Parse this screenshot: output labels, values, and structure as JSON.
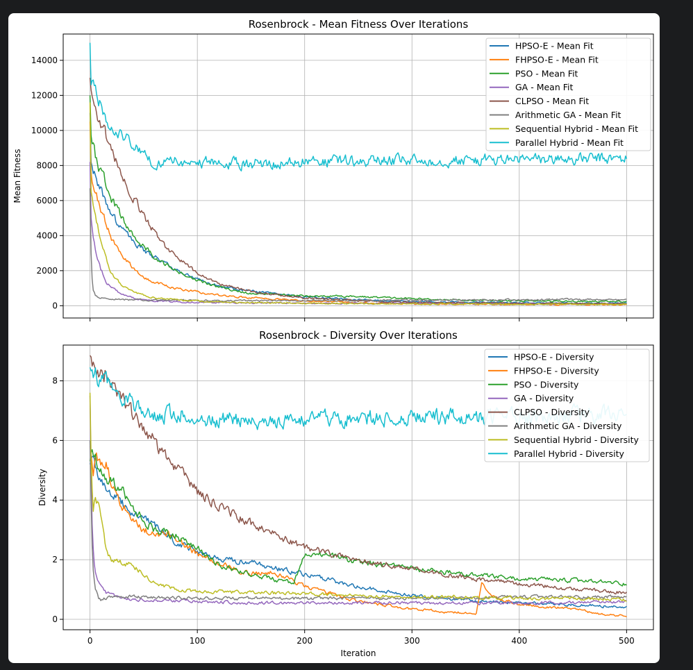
{
  "chart_data": [
    {
      "type": "line",
      "title": "Rosenbrock - Mean Fitness Over Iterations",
      "xlabel": "",
      "ylabel": "Mean Fitness",
      "xlim": [
        -25,
        525
      ],
      "ylim": [
        -700,
        15500
      ],
      "xticks": [
        0,
        100,
        200,
        300,
        400,
        500
      ],
      "yticks": [
        0,
        2000,
        4000,
        6000,
        8000,
        10000,
        12000,
        14000
      ],
      "grid": true,
      "legend_position": "top-right",
      "series": [
        {
          "name": "HPSO-E - Mean Fit",
          "color": "#1f77b4",
          "x": [
            0,
            1,
            3,
            5,
            10,
            15,
            20,
            30,
            40,
            50,
            60,
            70,
            80,
            100,
            120,
            150,
            200,
            250,
            300,
            350,
            400,
            450,
            500
          ],
          "y": [
            11000,
            8200,
            7800,
            7300,
            6600,
            5900,
            5200,
            4300,
            3700,
            3100,
            2800,
            2400,
            2050,
            1500,
            1100,
            850,
            500,
            350,
            250,
            200,
            170,
            150,
            140
          ]
        },
        {
          "name": "FHPSO-E - Mean Fit",
          "color": "#ff7f0e",
          "x": [
            0,
            1,
            3,
            5,
            10,
            15,
            20,
            30,
            40,
            50,
            60,
            70,
            80,
            100,
            120,
            150,
            200,
            250,
            300,
            350,
            400,
            450,
            500
          ],
          "y": [
            10500,
            7600,
            7000,
            6500,
            5500,
            4700,
            3900,
            2900,
            2200,
            1650,
            1350,
            1150,
            1000,
            780,
            600,
            450,
            280,
            160,
            110,
            90,
            80,
            70,
            60
          ]
        },
        {
          "name": "PSO - Mean Fit",
          "color": "#2ca02c",
          "x": [
            0,
            1,
            3,
            5,
            10,
            15,
            20,
            30,
            40,
            50,
            60,
            70,
            80,
            100,
            120,
            150,
            200,
            250,
            300,
            350,
            400,
            450,
            500
          ],
          "y": [
            12000,
            9700,
            9200,
            8600,
            7600,
            6900,
            6100,
            5000,
            4100,
            3400,
            2800,
            2350,
            2000,
            1450,
            1050,
            700,
            550,
            520,
            400,
            320,
            280,
            250,
            230
          ]
        },
        {
          "name": "GA - Mean Fit",
          "color": "#9467bd",
          "x": [
            0,
            1,
            3,
            5,
            10,
            15,
            20,
            30,
            40,
            50,
            60,
            70,
            80,
            100,
            120,
            150,
            200,
            250,
            300,
            350,
            400,
            450,
            500
          ],
          "y": [
            8200,
            5000,
            4000,
            3200,
            2100,
            1400,
            1000,
            650,
            430,
            330,
            280,
            250,
            230,
            200,
            180,
            160,
            140,
            130,
            120,
            115,
            110,
            105,
            100
          ]
        },
        {
          "name": "CLPSO - Mean Fit",
          "color": "#8c564b",
          "x": [
            0,
            1,
            3,
            5,
            10,
            15,
            20,
            30,
            40,
            50,
            60,
            70,
            80,
            100,
            120,
            150,
            200,
            250,
            300,
            350,
            400,
            450,
            500
          ],
          "y": [
            13000,
            12300,
            11600,
            11100,
            10500,
            9600,
            8900,
            7300,
            6200,
            5100,
            4200,
            3400,
            2800,
            1850,
            1250,
            800,
            450,
            280,
            200,
            160,
            140,
            120,
            110
          ]
        },
        {
          "name": "Arithmetic GA - Mean Fit",
          "color": "#7f7f7f",
          "x": [
            0,
            1,
            2,
            3,
            5,
            10,
            15,
            20,
            30,
            50,
            100,
            150,
            200,
            250,
            300,
            350,
            400,
            450,
            500
          ],
          "y": [
            6700,
            3000,
            1500,
            900,
            600,
            450,
            400,
            380,
            350,
            320,
            300,
            290,
            300,
            300,
            320,
            330,
            340,
            360,
            330
          ]
        },
        {
          "name": "Sequential Hybrid - Mean Fit",
          "color": "#bcbd22",
          "x": [
            0,
            1,
            3,
            5,
            10,
            15,
            20,
            30,
            40,
            50,
            60,
            70,
            80,
            100,
            120,
            150,
            200,
            250,
            300,
            350,
            400,
            450,
            500
          ],
          "y": [
            11600,
            6500,
            5600,
            5000,
            3900,
            2700,
            1800,
            1150,
            850,
            600,
            450,
            380,
            330,
            260,
            210,
            170,
            140,
            120,
            110,
            100,
            95,
            90,
            90
          ]
        },
        {
          "name": "Parallel Hybrid - Mean Fit",
          "color": "#17becf",
          "x": [
            0,
            1,
            3,
            5,
            10,
            15,
            20,
            30,
            40,
            50,
            60,
            70,
            80,
            100,
            120,
            150,
            200,
            250,
            300,
            350,
            400,
            450,
            500
          ],
          "y": [
            15000,
            12600,
            12300,
            12000,
            11300,
            10800,
            10400,
            9800,
            9100,
            8500,
            8200,
            8170,
            8200,
            8170,
            8100,
            8120,
            8180,
            8250,
            8270,
            8300,
            8340,
            8370,
            8380
          ]
        }
      ]
    },
    {
      "type": "line",
      "title": "Rosenbrock - Diversity Over Iterations",
      "xlabel": "Iteration",
      "ylabel": "Diversity",
      "xlim": [
        -25,
        525
      ],
      "ylim": [
        -0.35,
        9.2
      ],
      "xticks": [
        0,
        100,
        200,
        300,
        400,
        500
      ],
      "yticks": [
        0,
        2,
        4,
        6,
        8
      ],
      "grid": true,
      "legend_position": "top-right",
      "series": [
        {
          "name": "HPSO-E - Diversity",
          "color": "#1f77b4",
          "x": [
            0,
            2,
            5,
            10,
            20,
            30,
            40,
            50,
            60,
            70,
            80,
            100,
            120,
            150,
            200,
            250,
            300,
            350,
            400,
            450,
            500
          ],
          "y": [
            5.2,
            5.5,
            5.1,
            4.7,
            4.2,
            3.9,
            3.6,
            3.4,
            3.1,
            2.9,
            2.6,
            2.3,
            2.0,
            1.9,
            1.5,
            1.1,
            0.8,
            0.65,
            0.55,
            0.5,
            0.4
          ]
        },
        {
          "name": "FHPSO-E - Diversity",
          "color": "#ff7f0e",
          "x": [
            0,
            3,
            5,
            10,
            15,
            20,
            30,
            40,
            50,
            60,
            70,
            80,
            100,
            120,
            150,
            170,
            200,
            250,
            300,
            330,
            360,
            365,
            370,
            380,
            400,
            450,
            480,
            500
          ],
          "y": [
            5.8,
            5.0,
            5.5,
            5.3,
            5.2,
            4.6,
            3.8,
            3.3,
            3.0,
            2.9,
            2.9,
            2.7,
            2.2,
            1.9,
            1.5,
            1.6,
            1.1,
            0.6,
            0.35,
            0.25,
            0.2,
            1.3,
            0.9,
            0.7,
            0.5,
            0.35,
            0.15,
            0.12
          ]
        },
        {
          "name": "PSO - Diversity",
          "color": "#2ca02c",
          "x": [
            0,
            2,
            5,
            10,
            20,
            30,
            40,
            50,
            60,
            70,
            80,
            100,
            120,
            150,
            190,
            195,
            200,
            220,
            250,
            300,
            350,
            400,
            450,
            500
          ],
          "y": [
            5.3,
            5.9,
            5.5,
            5.0,
            4.6,
            4.3,
            3.8,
            3.3,
            3.0,
            2.9,
            2.8,
            2.4,
            1.8,
            1.5,
            1.2,
            1.7,
            2.1,
            2.2,
            1.9,
            1.7,
            1.5,
            1.35,
            1.3,
            1.2
          ]
        },
        {
          "name": "GA - Diversity",
          "color": "#9467bd",
          "x": [
            0,
            1,
            2,
            3,
            4,
            6,
            8,
            10,
            15,
            20,
            30,
            50,
            100,
            150,
            200,
            250,
            300,
            350,
            400,
            450,
            500
          ],
          "y": [
            7.5,
            4.8,
            3.3,
            2.4,
            1.8,
            1.4,
            1.3,
            1.2,
            0.9,
            0.8,
            0.7,
            0.65,
            0.6,
            0.55,
            0.55,
            0.55,
            0.55,
            0.55,
            0.55,
            0.55,
            0.6
          ]
        },
        {
          "name": "CLPSO - Diversity",
          "color": "#8c564b",
          "x": [
            0,
            5,
            10,
            20,
            30,
            40,
            50,
            60,
            70,
            80,
            100,
            120,
            150,
            200,
            250,
            300,
            350,
            400,
            450,
            500
          ],
          "y": [
            8.85,
            8.6,
            8.4,
            8.0,
            7.5,
            6.9,
            6.4,
            6.0,
            5.5,
            5.1,
            4.3,
            3.8,
            3.2,
            2.4,
            2.0,
            1.7,
            1.4,
            1.2,
            1.0,
            0.9
          ]
        },
        {
          "name": "Arithmetic GA - Diversity",
          "color": "#7f7f7f",
          "x": [
            0,
            1,
            2,
            3,
            5,
            8,
            10,
            20,
            50,
            100,
            150,
            200,
            250,
            300,
            350,
            400,
            450,
            500
          ],
          "y": [
            6.0,
            4.0,
            2.5,
            1.6,
            1.0,
            0.7,
            0.65,
            0.75,
            0.75,
            0.7,
            0.7,
            0.7,
            0.7,
            0.7,
            0.7,
            0.75,
            0.75,
            0.75
          ]
        },
        {
          "name": "Sequential Hybrid - Diversity",
          "color": "#bcbd22",
          "x": [
            0,
            1,
            3,
            5,
            10,
            12,
            15,
            20,
            30,
            40,
            50,
            60,
            80,
            100,
            150,
            200,
            250,
            300,
            350,
            400,
            450,
            500
          ],
          "y": [
            7.6,
            5.4,
            3.8,
            4.2,
            3.5,
            3.0,
            2.3,
            2.0,
            1.9,
            1.8,
            1.5,
            1.2,
            1.0,
            0.95,
            0.9,
            0.85,
            0.8,
            0.75,
            0.75,
            0.7,
            0.7,
            0.65
          ]
        },
        {
          "name": "Parallel Hybrid - Diversity",
          "color": "#17becf",
          "x": [
            0,
            3,
            5,
            10,
            20,
            30,
            40,
            50,
            60,
            80,
            100,
            120,
            150,
            200,
            250,
            300,
            350,
            400,
            450,
            500
          ],
          "y": [
            8.45,
            8.1,
            8.2,
            8.0,
            7.8,
            7.5,
            7.2,
            7.0,
            6.8,
            6.9,
            6.85,
            6.7,
            6.65,
            6.7,
            6.75,
            6.75,
            6.8,
            6.8,
            6.85,
            6.85
          ]
        }
      ]
    }
  ]
}
